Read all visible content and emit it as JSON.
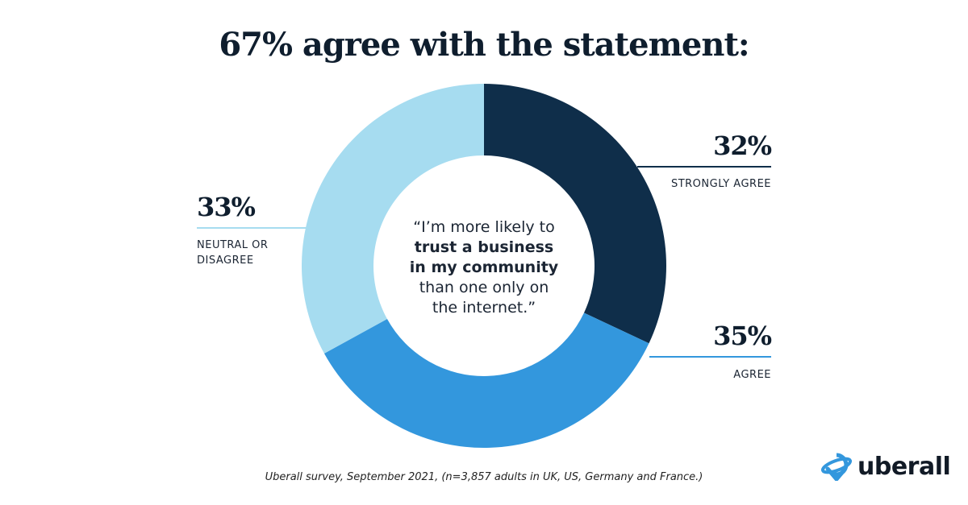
{
  "title": "67% agree with the statement:",
  "quote": {
    "line1": "“I’m more likely to",
    "bold1": "trust a business",
    "bold2": "in my community",
    "line4": "than one only on",
    "line5": "the internet.”"
  },
  "source": "Uberall survey, September 2021, (n=3,857 adults in UK, US, Germany and France.)",
  "logo": "uberall",
  "chart_data": {
    "type": "pie",
    "donut": true,
    "title": "67% agree with the statement:",
    "start": "top-clockwise",
    "slices": [
      {
        "label": "STRONGLY AGREE",
        "value": 32,
        "pct_label": "32%",
        "color": "#0f2e4a"
      },
      {
        "label": "AGREE",
        "value": 35,
        "pct_label": "35%",
        "color": "#3397dd"
      },
      {
        "label_line1": "NEUTRAL OR",
        "label_line2": "DISAGREE",
        "label": "NEUTRAL OR DISAGREE",
        "value": 33,
        "pct_label": "33%",
        "color": "#a6dcf0"
      }
    ]
  }
}
